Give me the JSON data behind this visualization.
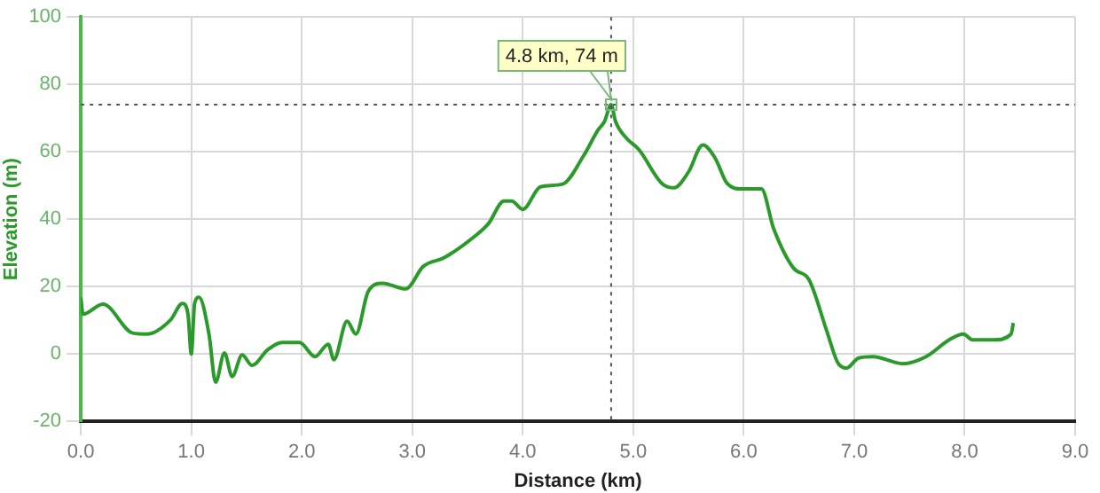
{
  "chart_data": {
    "type": "line",
    "xlabel": "Distance (km)",
    "ylabel": "Elevation (m)",
    "x": [
      0,
      0.02,
      0.2,
      0.47,
      0.6,
      0.81,
      0.92,
      0.97,
      1.0,
      1.03,
      1.07,
      1.16,
      1.22,
      1.3,
      1.37,
      1.46,
      1.55,
      1.69,
      1.82,
      1.98,
      2.12,
      2.24,
      2.29,
      2.41,
      2.49,
      2.6,
      2.73,
      2.94,
      3.1,
      3.29,
      3.58,
      3.69,
      3.83,
      3.9,
      4.0,
      4.16,
      4.36,
      4.55,
      4.68,
      4.74,
      4.8,
      4.84,
      4.94,
      5.05,
      5.26,
      5.37,
      5.5,
      5.63,
      5.74,
      5.85,
      5.98,
      6.16,
      6.27,
      6.45,
      6.59,
      6.75,
      6.85,
      6.93,
      7.04,
      7.17,
      7.44,
      7.65,
      7.86,
      7.99,
      8.07,
      8.26,
      8.42,
      8.44
    ],
    "series": [
      {
        "color": "#2a9a2a",
        "values": [
          16.8,
          11.8,
          14.8,
          6.2,
          5.9,
          10,
          15,
          11.8,
          0,
          15,
          16.8,
          5.9,
          -8.4,
          0.3,
          -6.7,
          -0.3,
          -3.4,
          1.2,
          3.4,
          3.4,
          -0.8,
          2.9,
          -1.7,
          9.7,
          5.9,
          18.5,
          21,
          19.3,
          26,
          28.6,
          35.3,
          38.7,
          45.4,
          45.4,
          42.9,
          49.6,
          50.4,
          58.8,
          66.4,
          69,
          74,
          69,
          64,
          60.7,
          50.6,
          49.3,
          54,
          62,
          58.2,
          50.6,
          49,
          49,
          37.3,
          25.5,
          22.1,
          7,
          -2.5,
          -4.2,
          -1.2,
          -0.8,
          -2.9,
          -0.8,
          4.2,
          5.9,
          4.2,
          4.2,
          5.9,
          9.2
        ]
      }
    ],
    "xlim": [
      0,
      9
    ],
    "xticks": [
      {
        "value": 0,
        "label": "0.0"
      },
      {
        "value": 1,
        "label": "1.0"
      },
      {
        "value": 2,
        "label": "2.0"
      },
      {
        "value": 3,
        "label": "3.0"
      },
      {
        "value": 4,
        "label": "4.0"
      },
      {
        "value": 5,
        "label": "5.0"
      },
      {
        "value": 6,
        "label": "6.0"
      },
      {
        "value": 7,
        "label": "7.0"
      },
      {
        "value": 8,
        "label": "8.0"
      },
      {
        "value": 9,
        "label": "9.0"
      }
    ],
    "ylim": [
      -20,
      100
    ],
    "yticks": [
      -20,
      0,
      20,
      40,
      60,
      80,
      100
    ],
    "ref_lines": [
      {
        "axis": "x",
        "value": 4.8,
        "color": "#555555",
        "line_style": "dotted"
      },
      {
        "axis": "y",
        "value": 74,
        "color": "#555555",
        "line_style": "dotted"
      }
    ],
    "annotations": [
      {
        "text": "4.8 km, 74 m",
        "x": 4.8,
        "y": 74
      }
    ],
    "grid": true,
    "legend": false,
    "marker": "none",
    "line_style": "solid"
  }
}
